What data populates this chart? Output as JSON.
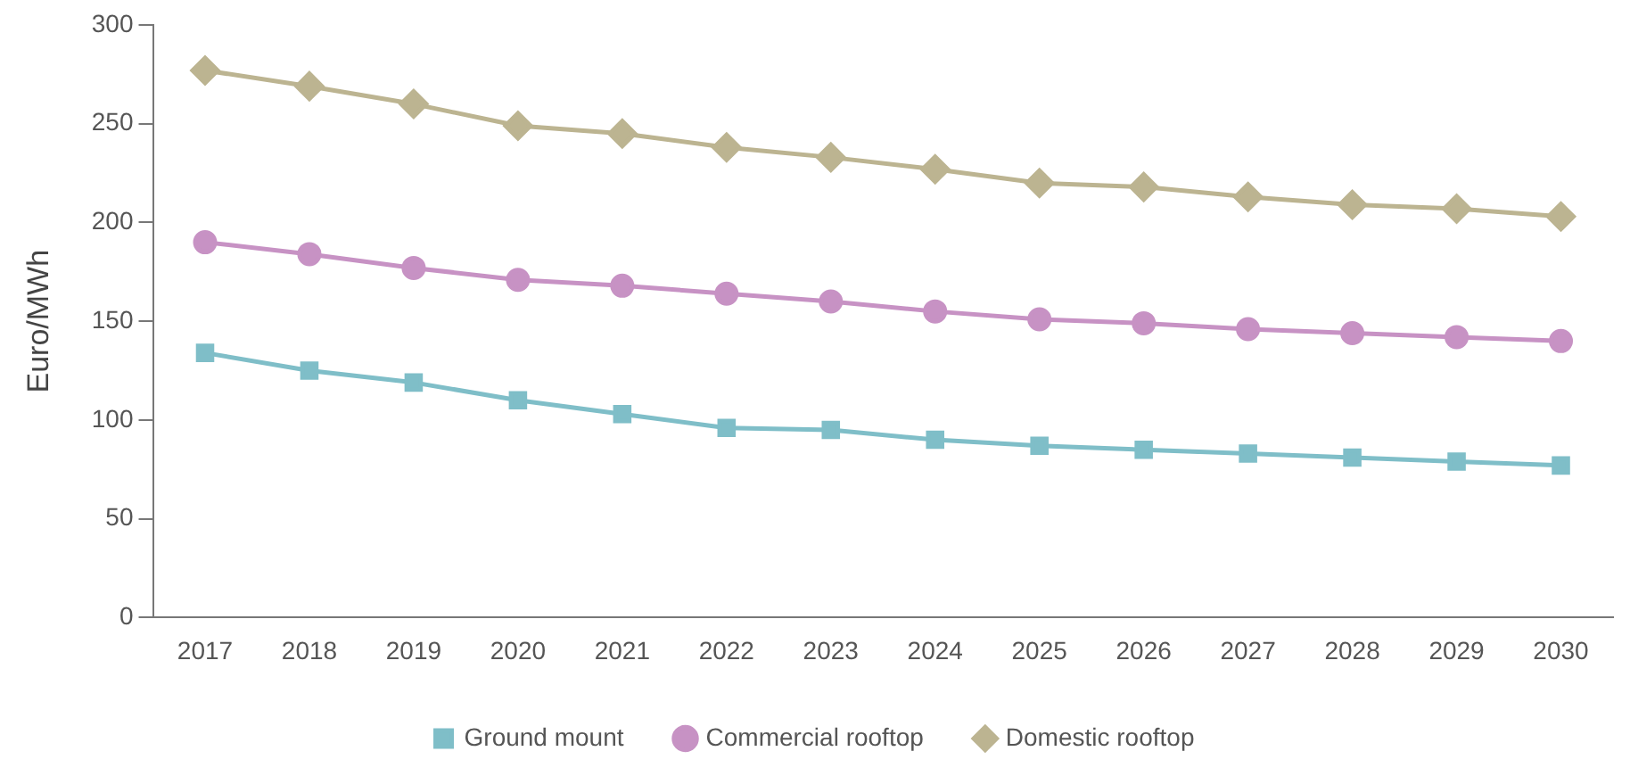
{
  "chart_data": {
    "type": "line",
    "ylabel": "Euro/MWh",
    "categories": [
      "2017",
      "2018",
      "2019",
      "2020",
      "2021",
      "2022",
      "2023",
      "2024",
      "2025",
      "2026",
      "2027",
      "2028",
      "2029",
      "2030"
    ],
    "series": [
      {
        "name": "Ground mount",
        "color": "#7fbec8",
        "marker": "square",
        "values": [
          134,
          125,
          119,
          110,
          103,
          96,
          95,
          90,
          87,
          85,
          83,
          81,
          79,
          77
        ]
      },
      {
        "name": "Commercial rooftop",
        "color": "#c792c4",
        "marker": "circle",
        "values": [
          190,
          184,
          177,
          171,
          168,
          164,
          160,
          155,
          151,
          149,
          146,
          144,
          142,
          140
        ]
      },
      {
        "name": "Domestic rooftop",
        "color": "#bcb491",
        "marker": "diamond",
        "values": [
          277,
          269,
          260,
          249,
          245,
          238,
          233,
          227,
          220,
          218,
          213,
          209,
          207,
          203
        ]
      }
    ],
    "ylim": [
      0,
      300
    ],
    "yticks": [
      0,
      50,
      100,
      150,
      200,
      250,
      300
    ],
    "grid": false,
    "legend": "bottom",
    "line_style": "solid"
  }
}
